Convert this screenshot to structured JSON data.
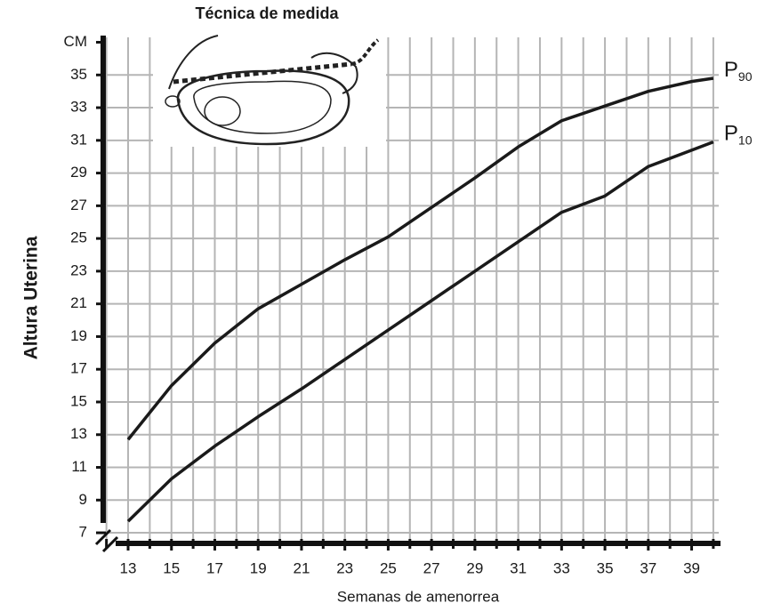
{
  "chart_data": {
    "type": "line",
    "title": "Técnica de medida",
    "x_label": "Semanas de amenorrea",
    "y_label": "Altura Uterina",
    "x": [
      13,
      15,
      17,
      19,
      21,
      23,
      25,
      27,
      29,
      31,
      33,
      35,
      37,
      39,
      40
    ],
    "series": [
      {
        "name": "P",
        "subscript": "90",
        "color": "#1a1a1a",
        "values": [
          12.7,
          16.0,
          18.6,
          20.7,
          22.2,
          23.7,
          25.1,
          26.9,
          28.7,
          30.6,
          32.2,
          33.1,
          34.0,
          34.6,
          34.8
        ]
      },
      {
        "name": "P",
        "subscript": "10",
        "color": "#1a1a1a",
        "values": [
          7.7,
          10.3,
          12.3,
          14.1,
          15.8,
          17.6,
          19.4,
          21.2,
          23.0,
          24.8,
          26.6,
          27.6,
          29.4,
          30.4,
          30.9
        ]
      }
    ],
    "xlim": [
      11.85,
      40.25
    ],
    "xticks": [
      13,
      15,
      17,
      19,
      21,
      23,
      25,
      27,
      29,
      31,
      33,
      35,
      37,
      39
    ],
    "xminorticks": [
      12,
      14,
      16,
      18,
      20,
      22,
      24,
      26,
      28,
      30,
      32,
      34,
      36,
      38,
      40
    ],
    "ylim": [
      6.35,
      37.3
    ],
    "yticks": [
      7,
      9,
      11,
      13,
      15,
      17,
      19,
      21,
      23,
      25,
      27,
      29,
      31,
      33,
      35,
      {
        "value": 37,
        "label": "CM"
      }
    ],
    "grid": true
  }
}
